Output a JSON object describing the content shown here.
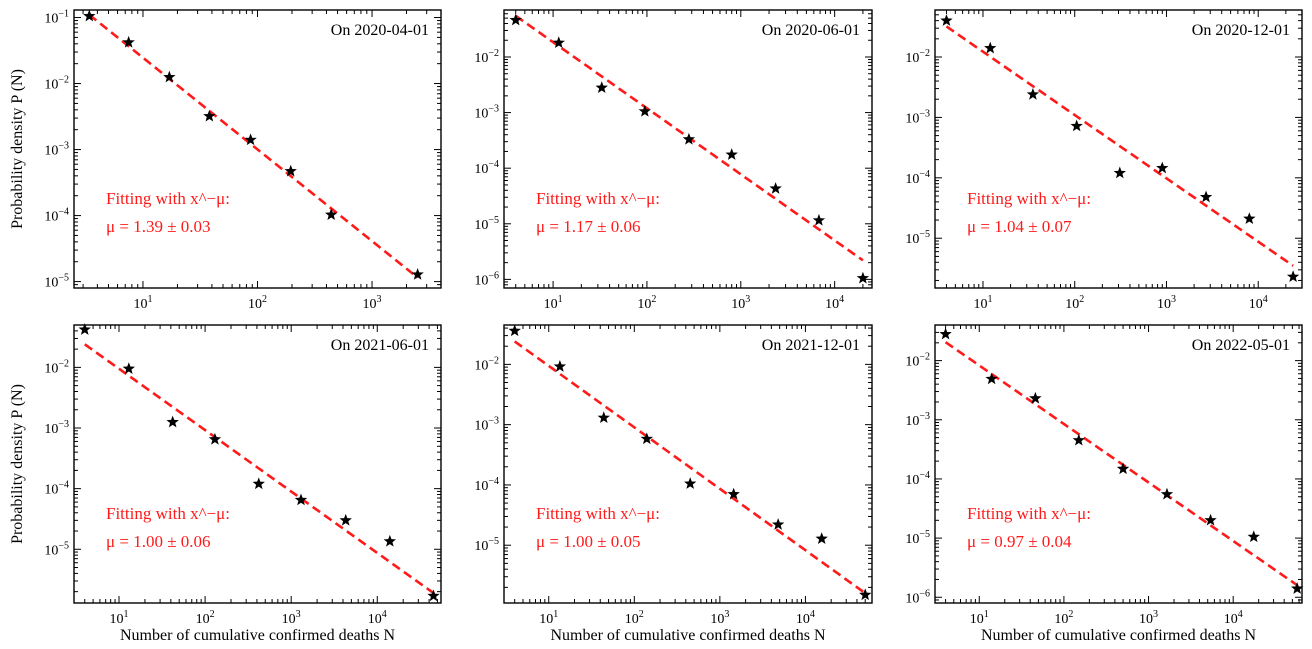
{
  "figure": {
    "xlabel": "Number of cumulative confirmed deaths N",
    "ylabel": "Probability density P (N)",
    "colors": {
      "points": "#000000",
      "fit": "#ff1a1a"
    }
  },
  "chart_data": [
    {
      "type": "scatter",
      "title": "On 2020-04-01",
      "x_scale": "log",
      "y_scale": "log",
      "xlim": [
        2.5,
        4000
      ],
      "ylim": [
        8e-06,
        0.13
      ],
      "xticks": [
        10,
        100,
        1000
      ],
      "yticks": [
        1e-05,
        0.0001,
        0.001,
        0.01,
        0.1
      ],
      "series": [
        {
          "x": [
            3.4,
            7.5,
            17,
            38,
            87,
            195,
            440,
            2500
          ],
          "y": [
            0.105,
            0.042,
            0.0125,
            0.0032,
            0.0014,
            0.00047,
            0.000103,
            1.28e-05
          ]
        },
        {
          "x": [
            3.4,
            2500
          ],
          "y": [
            0.11,
            1.15e-05
          ]
        }
      ],
      "annotation": [
        "Fitting with x^−μ:",
        "μ = 1.39 ± 0.03"
      ]
    },
    {
      "type": "scatter",
      "title": "On 2020-06-01",
      "x_scale": "log",
      "y_scale": "log",
      "xlim": [
        3,
        25000
      ],
      "ylim": [
        7e-07,
        0.07
      ],
      "xticks": [
        10,
        100,
        1000,
        10000
      ],
      "yticks": [
        1e-06,
        1e-05,
        0.0001,
        0.001,
        0.01
      ],
      "series": [
        {
          "x": [
            4,
            11.5,
            33,
            95,
            280,
            800,
            2350,
            6800,
            20000
          ],
          "y": [
            0.046,
            0.018,
            0.0028,
            0.00105,
            0.00033,
            0.000175,
            4.3e-05,
            1.15e-05,
            1.05e-06
          ]
        },
        {
          "x": [
            4,
            20000
          ],
          "y": [
            0.055,
            2.2e-06
          ]
        }
      ],
      "annotation": [
        "Fitting with x^−μ:",
        "μ = 1.17 ± 0.06"
      ]
    },
    {
      "type": "scatter",
      "title": "On 2020-12-01",
      "x_scale": "log",
      "y_scale": "log",
      "xlim": [
        3,
        30000
      ],
      "ylim": [
        1.5e-06,
        0.06
      ],
      "xticks": [
        10,
        100,
        1000,
        10000
      ],
      "yticks": [
        1e-05,
        0.0001,
        0.001,
        0.01
      ],
      "series": [
        {
          "x": [
            4,
            12,
            35,
            105,
            310,
            900,
            2700,
            8000,
            24000
          ],
          "y": [
            0.04,
            0.014,
            0.0024,
            0.00072,
            0.00012,
            0.000145,
            4.8e-05,
            2.1e-05,
            2.3e-06
          ]
        },
        {
          "x": [
            4,
            24000
          ],
          "y": [
            0.032,
            3.5e-06
          ]
        }
      ],
      "annotation": [
        "Fitting with x^−μ:",
        "μ = 1.04 ± 0.07"
      ]
    },
    {
      "type": "scatter",
      "title": "On 2021-06-01",
      "x_scale": "log",
      "y_scale": "log",
      "xlim": [
        3,
        55000
      ],
      "ylim": [
        1.3e-06,
        0.05
      ],
      "xticks": [
        10,
        100,
        1000,
        10000
      ],
      "yticks": [
        1e-05,
        0.0001,
        0.001,
        0.01
      ],
      "series": [
        {
          "x": [
            4,
            13,
            42,
            130,
            420,
            1300,
            4300,
            14000,
            45000
          ],
          "y": [
            0.042,
            0.0095,
            0.00125,
            0.00065,
            0.00012,
            6.5e-05,
            3e-05,
            1.35e-05,
            1.7e-06
          ]
        },
        {
          "x": [
            4,
            45000
          ],
          "y": [
            0.024,
            1.9e-06
          ]
        }
      ],
      "annotation": [
        "Fitting with x^−μ:",
        "μ = 1.00 ± 0.06"
      ]
    },
    {
      "type": "scatter",
      "title": "On 2021-12-01",
      "x_scale": "log",
      "y_scale": "log",
      "xlim": [
        3,
        60000
      ],
      "ylim": [
        1.1e-06,
        0.045
      ],
      "xticks": [
        10,
        100,
        1000,
        10000
      ],
      "yticks": [
        1e-05,
        0.0001,
        0.001,
        0.01
      ],
      "series": [
        {
          "x": [
            4,
            13.5,
            44,
            140,
            450,
            1450,
            4800,
            15500,
            50000
          ],
          "y": [
            0.036,
            0.0092,
            0.0013,
            0.00058,
            0.000105,
            7e-05,
            2.2e-05,
            1.28e-05,
            1.5e-06
          ]
        },
        {
          "x": [
            4,
            50000
          ],
          "y": [
            0.024,
            1.6e-06
          ]
        }
      ],
      "annotation": [
        "Fitting with x^−μ:",
        "μ = 1.00 ± 0.05"
      ]
    },
    {
      "type": "scatter",
      "title": "On 2022-05-01",
      "x_scale": "log",
      "y_scale": "log",
      "xlim": [
        3,
        65000
      ],
      "ylim": [
        8e-07,
        0.04
      ],
      "xticks": [
        10,
        100,
        1000,
        10000
      ],
      "yticks": [
        1e-06,
        1e-05,
        0.0001,
        0.001,
        0.01
      ],
      "series": [
        {
          "x": [
            4,
            14,
            46,
            150,
            500,
            1650,
            5400,
            17500,
            57000
          ],
          "y": [
            0.028,
            0.0049,
            0.0023,
            0.00045,
            0.000148,
            5.5e-05,
            2e-05,
            1.05e-05,
            1.4e-06
          ]
        },
        {
          "x": [
            4,
            57000
          ],
          "y": [
            0.0205,
            1.6e-06
          ]
        }
      ],
      "annotation": [
        "Fitting with x^−μ:",
        "μ = 0.97 ± 0.04"
      ]
    }
  ]
}
